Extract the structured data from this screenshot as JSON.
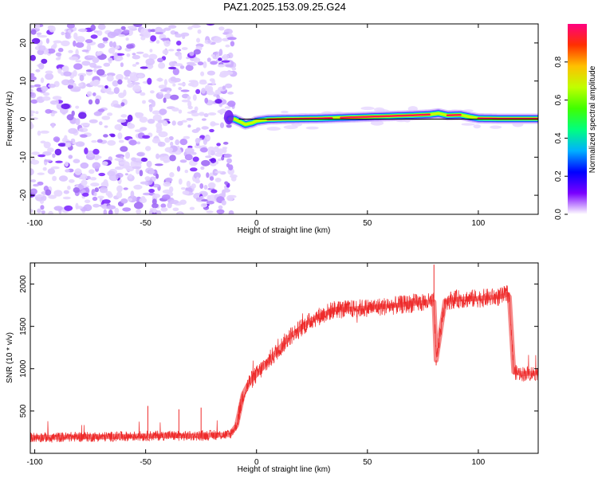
{
  "figure": {
    "title": "PAZ1.2025.153.09.25.G24"
  },
  "chart_data": [
    {
      "type": "heatmap",
      "xlabel": "Height of straight line (km)",
      "ylabel": "Frequency (Hz)",
      "xlim": [
        -102,
        127
      ],
      "ylim": [
        -25,
        25
      ],
      "x_ticks": [
        -100,
        -50,
        0,
        50,
        100
      ],
      "y_ticks": [
        -20,
        -10,
        0,
        10,
        20
      ],
      "grid": false,
      "noise_region_x": [
        -102,
        -12
      ],
      "ridge": {
        "x": [
          -12,
          -10,
          -7,
          -5,
          -2,
          0,
          5,
          10,
          20,
          30,
          40,
          50,
          60,
          70,
          78,
          82,
          86,
          92,
          96,
          100,
          110,
          127
        ],
        "y": [
          0,
          0,
          -0.8,
          -1.4,
          -1.0,
          -0.5,
          -0.1,
          0.0,
          0.1,
          0.2,
          0.4,
          0.6,
          0.8,
          1.0,
          1.2,
          1.5,
          1.0,
          1.1,
          0.6,
          0.2,
          0.1,
          0.1
        ]
      },
      "colorbar": {
        "label": "Normalized spectral amplitude",
        "range": [
          0,
          1
        ],
        "ticks": [
          0.0,
          0.2,
          0.4,
          0.6,
          0.8
        ],
        "tick_labels": [
          "0.0",
          "0.2",
          "0.4",
          "0.6",
          "0.8"
        ],
        "colors": [
          "#ffffff",
          "#7a00ff",
          "#0000ff",
          "#00b0ff",
          "#00ff80",
          "#40ff00",
          "#c0ff00",
          "#ffc000",
          "#ff3000",
          "#ff0080"
        ]
      }
    },
    {
      "type": "line",
      "xlabel": "Height of straight line (km)",
      "ylabel": "SNR (10 * v/v)",
      "xlim": [
        -102,
        127
      ],
      "ylim": [
        0,
        2250
      ],
      "x_ticks": [
        -100,
        -50,
        0,
        50,
        100
      ],
      "y_ticks": [
        500,
        1000,
        1500,
        2000
      ],
      "grid": false,
      "series": [
        {
          "color": "#ee2a2a",
          "x": [
            -102,
            -90,
            -80,
            -70,
            -60,
            -50,
            -40,
            -30,
            -20,
            -12,
            -9,
            -6,
            -3,
            0,
            5,
            10,
            15,
            20,
            25,
            30,
            35,
            40,
            50,
            60,
            70,
            80,
            81,
            85,
            90,
            100,
            110,
            113,
            114,
            116,
            120,
            127
          ],
          "y": [
            190,
            190,
            195,
            195,
            200,
            205,
            210,
            205,
            215,
            220,
            330,
            700,
            850,
            930,
            1080,
            1230,
            1380,
            1480,
            1580,
            1640,
            1700,
            1700,
            1720,
            1740,
            1770,
            1790,
            1100,
            1800,
            1820,
            1830,
            1850,
            1880,
            1850,
            960,
            940,
            950
          ]
        }
      ]
    }
  ]
}
